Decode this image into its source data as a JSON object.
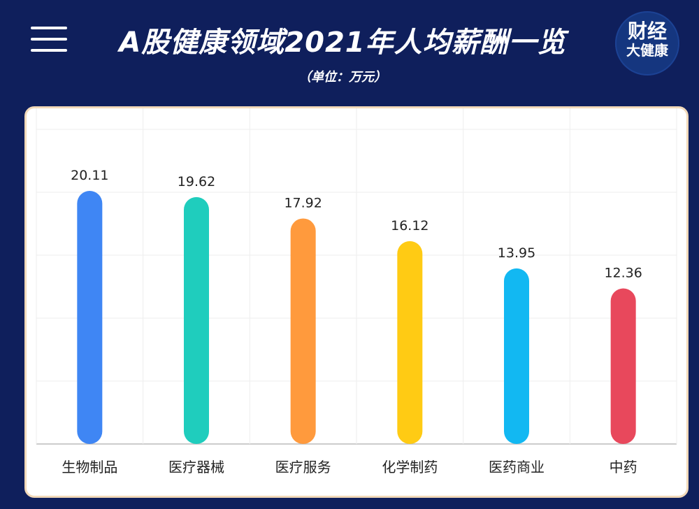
{
  "header": {
    "title": "A股健康领域2021年人均薪酬一览",
    "subtitle": "（单位：万元）",
    "logo_line1": "财经",
    "logo_line2": "大健康"
  },
  "chart_data": {
    "type": "bar",
    "title": "A股健康领域2021年人均薪酬一览",
    "subtitle": "（单位：万元）",
    "categories": [
      "生物制品",
      "医疗器械",
      "医疗服务",
      "化学制药",
      "医药商业",
      "中药"
    ],
    "values": [
      20.11,
      19.62,
      17.92,
      16.12,
      13.95,
      12.36
    ],
    "value_labels": [
      "20.11",
      "19.62",
      "17.92",
      "16.12",
      "13.95",
      "12.36"
    ],
    "colors": [
      "#3f86f4",
      "#1fcdbd",
      "#ff9a3d",
      "#ffcb14",
      "#12b8f2",
      "#e8485c"
    ],
    "ylim": [
      0,
      25
    ],
    "grid": true,
    "legend": "none"
  }
}
